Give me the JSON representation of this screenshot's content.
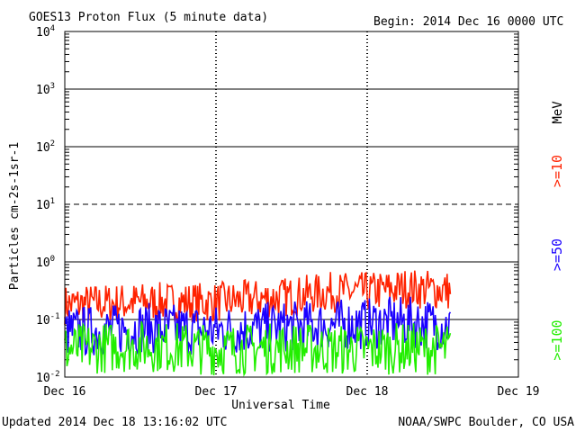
{
  "header": {
    "title": "GOES13 Proton Flux (5 minute data)",
    "begin": "Begin: 2014 Dec 16 0000 UTC"
  },
  "footer": {
    "updated": "Updated 2014 Dec 18 13:16:02 UTC",
    "credit": "NOAA/SWPC Boulder, CO USA"
  },
  "colors": {
    "ge10": "#ff2200",
    "ge50": "#1a00ff",
    "ge100": "#22ee00",
    "axis": "#000000"
  },
  "chart_data": {
    "type": "line",
    "title": "GOES13 Proton Flux (5 minute data)",
    "xlabel": "Universal Time",
    "ylabel": "Particles cm-2s-1sr-1",
    "y_scale": "log",
    "ylim": [
      0.01,
      10000
    ],
    "xlim": [
      "2014-12-16 00:00",
      "2014-12-19 00:00"
    ],
    "x_ticks": [
      "Dec 16",
      "Dec 17",
      "Dec 18",
      "Dec 19"
    ],
    "y_ticks": [
      {
        "base": "10",
        "exp": "-2"
      },
      {
        "base": "10",
        "exp": "-1"
      },
      {
        "base": "10",
        "exp": "0"
      },
      {
        "base": "10",
        "exp": "1"
      },
      {
        "base": "10",
        "exp": "2"
      },
      {
        "base": "10",
        "exp": "3"
      },
      {
        "base": "10",
        "exp": "4"
      }
    ],
    "threshold_line": 10,
    "data_end": "2014-12-18 13:15",
    "unit_label": "MeV",
    "series": [
      {
        "name": ">=10",
        "x": [
          "2014-12-16 00:00",
          "2014-12-16 12:00",
          "2014-12-17 00:00",
          "2014-12-17 12:00",
          "2014-12-17 18:00",
          "2014-12-18 00:00",
          "2014-12-18 06:00",
          "2014-12-18 13:15"
        ],
        "y": [
          0.18,
          0.2,
          0.2,
          0.25,
          0.3,
          0.3,
          0.35,
          0.32
        ]
      },
      {
        "name": ">=50",
        "x": [
          "2014-12-16 00:00",
          "2014-12-16 12:00",
          "2014-12-17 00:00",
          "2014-12-17 12:00",
          "2014-12-17 18:00",
          "2014-12-18 00:00",
          "2014-12-18 06:00",
          "2014-12-18 13:15"
        ],
        "y": [
          0.06,
          0.07,
          0.065,
          0.075,
          0.08,
          0.085,
          0.09,
          0.08
        ]
      },
      {
        "name": ">=100",
        "x": [
          "2014-12-16 00:00",
          "2014-12-16 12:00",
          "2014-12-17 00:00",
          "2014-12-17 12:00",
          "2014-12-17 18:00",
          "2014-12-18 00:00",
          "2014-12-18 06:00",
          "2014-12-18 13:15"
        ],
        "y": [
          0.03,
          0.035,
          0.03,
          0.032,
          0.03,
          0.03,
          0.032,
          0.03
        ]
      }
    ]
  }
}
